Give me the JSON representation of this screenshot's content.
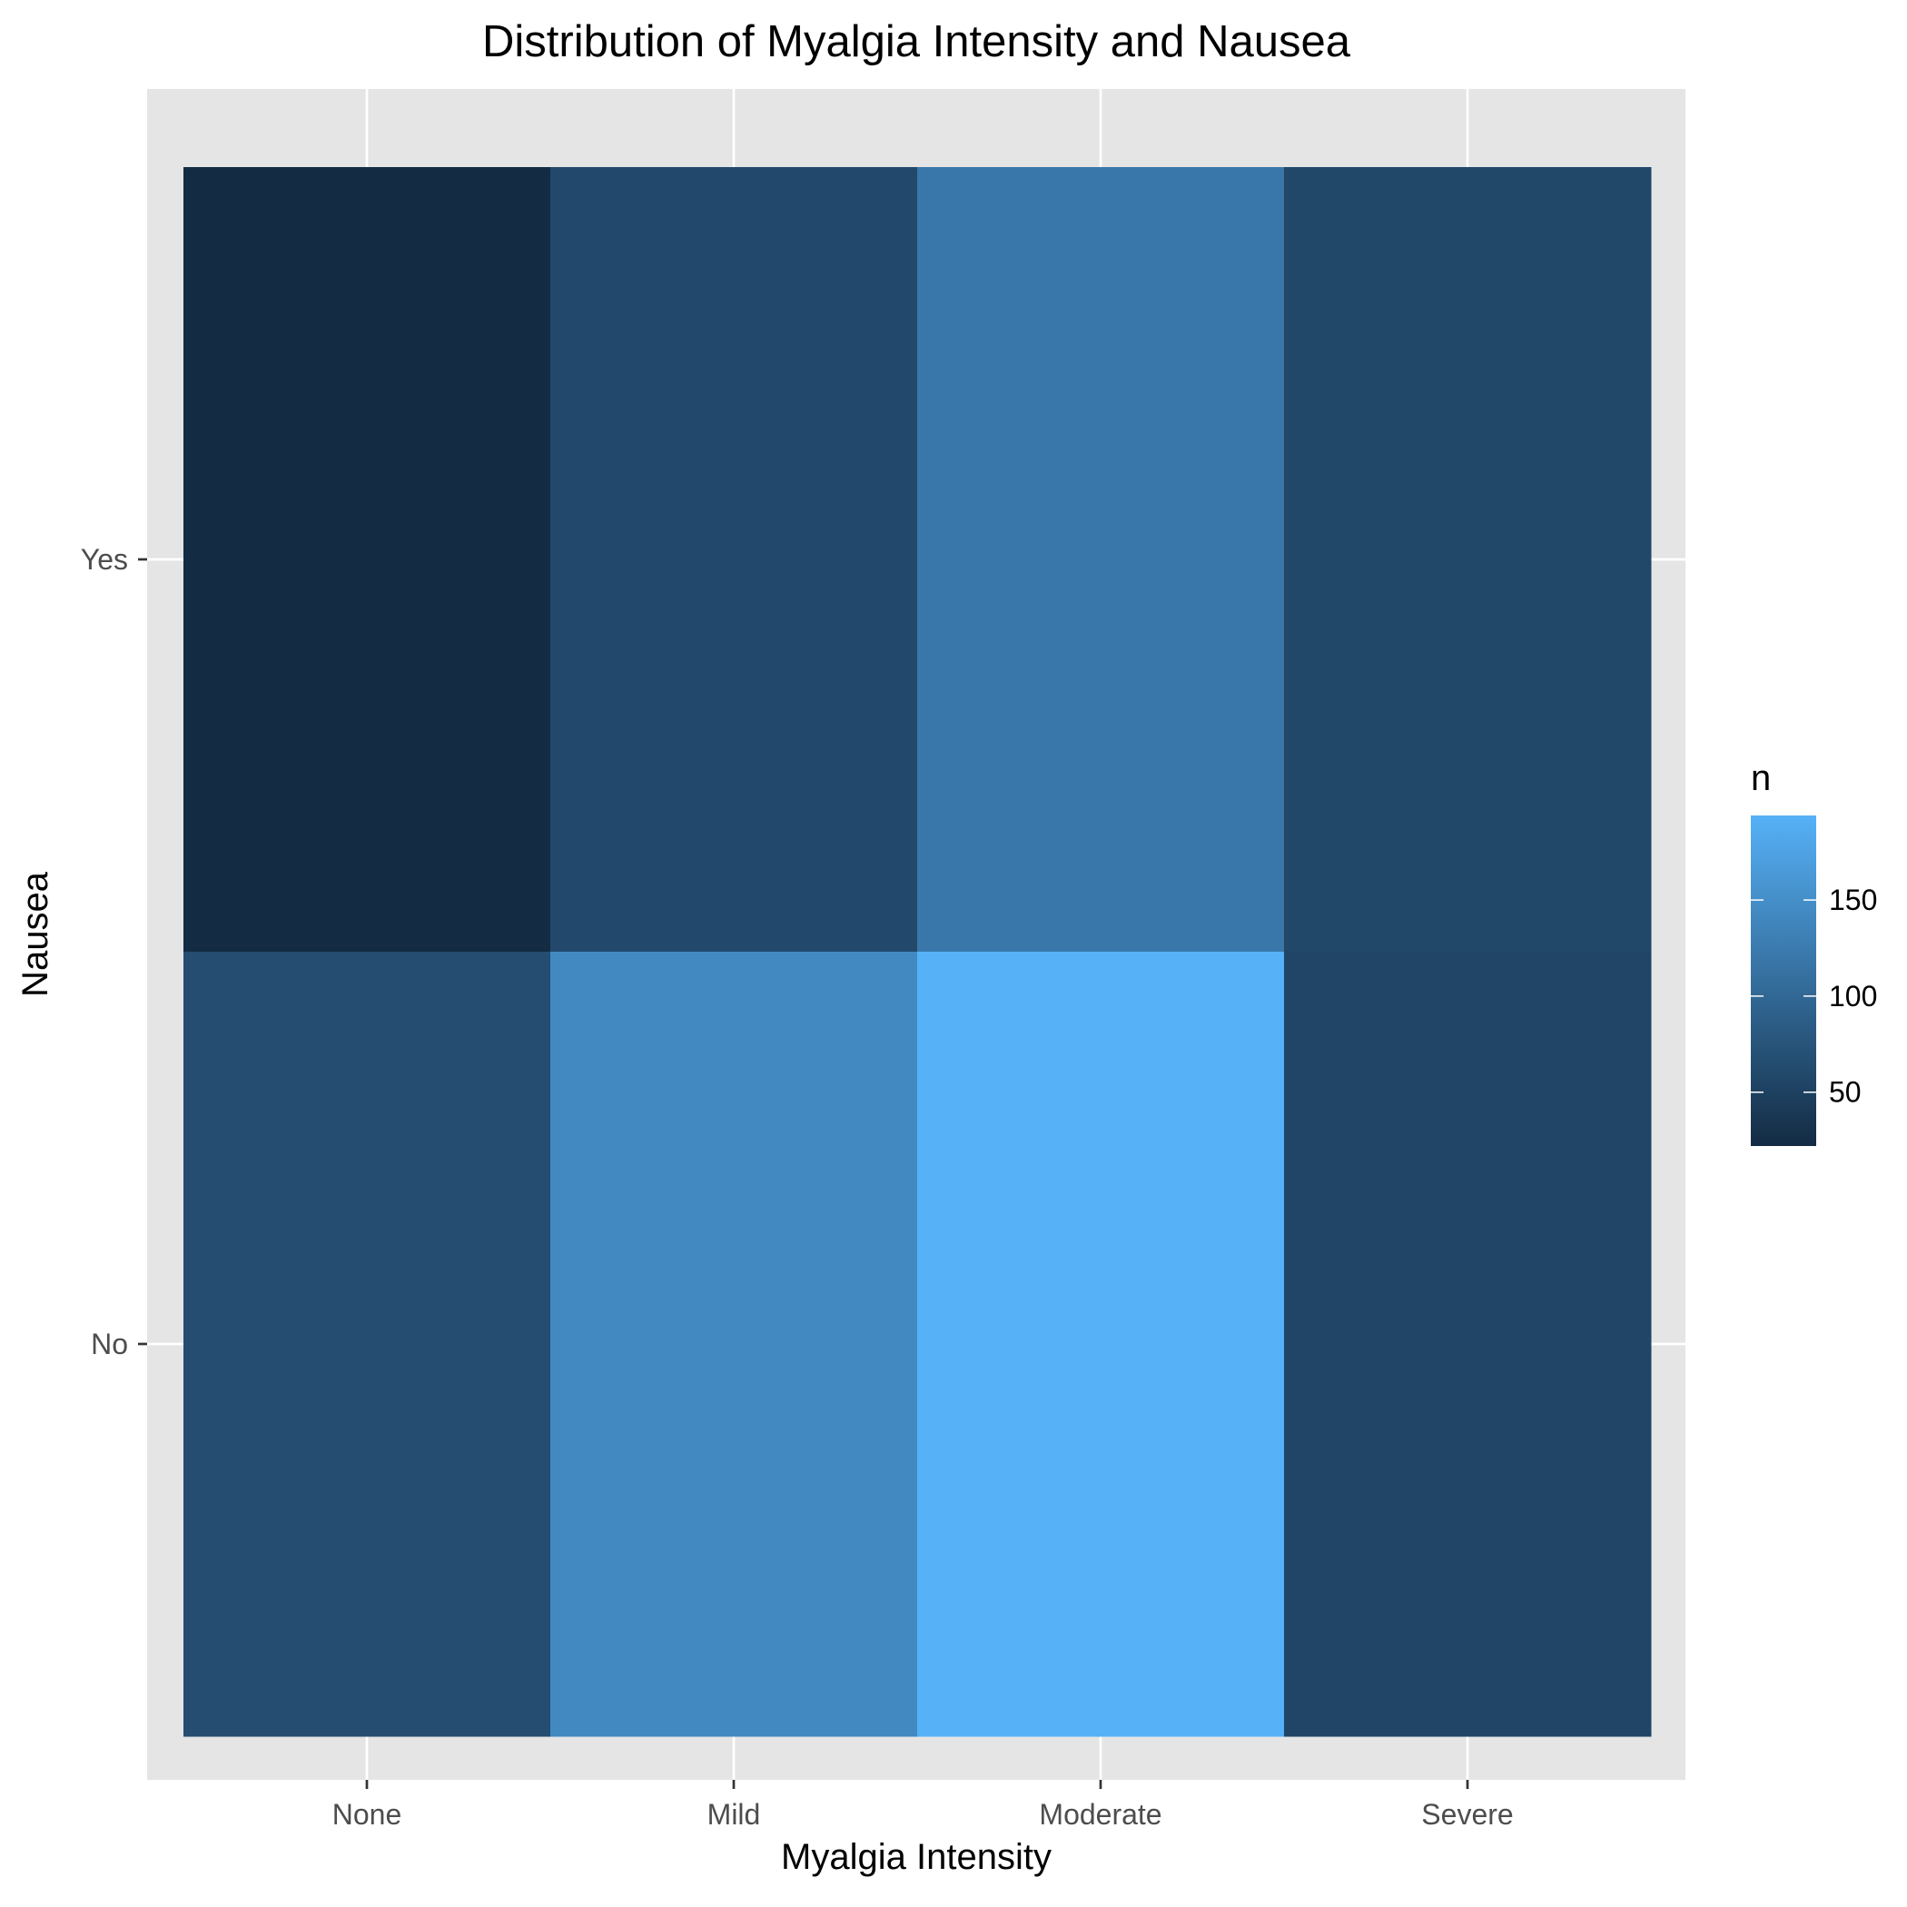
{
  "chart_data": {
    "type": "heatmap",
    "title": "Distribution of Myalgia Intensity and Nausea",
    "xlabel": "Myalgia Intensity",
    "ylabel": "Nausea",
    "x_categories": [
      "None",
      "Mild",
      "Moderate",
      "Severe"
    ],
    "y_categories": [
      "No",
      "Yes"
    ],
    "cells": [
      {
        "x": "None",
        "y": "Yes",
        "n": 22
      },
      {
        "x": "Mild",
        "y": "Yes",
        "n": 60
      },
      {
        "x": "Moderate",
        "y": "Yes",
        "n": 120
      },
      {
        "x": "Severe",
        "y": "Yes",
        "n": 58
      },
      {
        "x": "None",
        "y": "No",
        "n": 66
      },
      {
        "x": "Mild",
        "y": "No",
        "n": 143
      },
      {
        "x": "Moderate",
        "y": "No",
        "n": 194
      },
      {
        "x": "Severe",
        "y": "No",
        "n": 56
      }
    ],
    "legend": {
      "title": "n",
      "placement": "right",
      "range": [
        22,
        194
      ],
      "ticks": [
        50,
        100,
        150
      ],
      "low_color": "#132B43",
      "high_color": "#56B1F7"
    },
    "panel_background": "#e5e5e5",
    "grid": true
  }
}
